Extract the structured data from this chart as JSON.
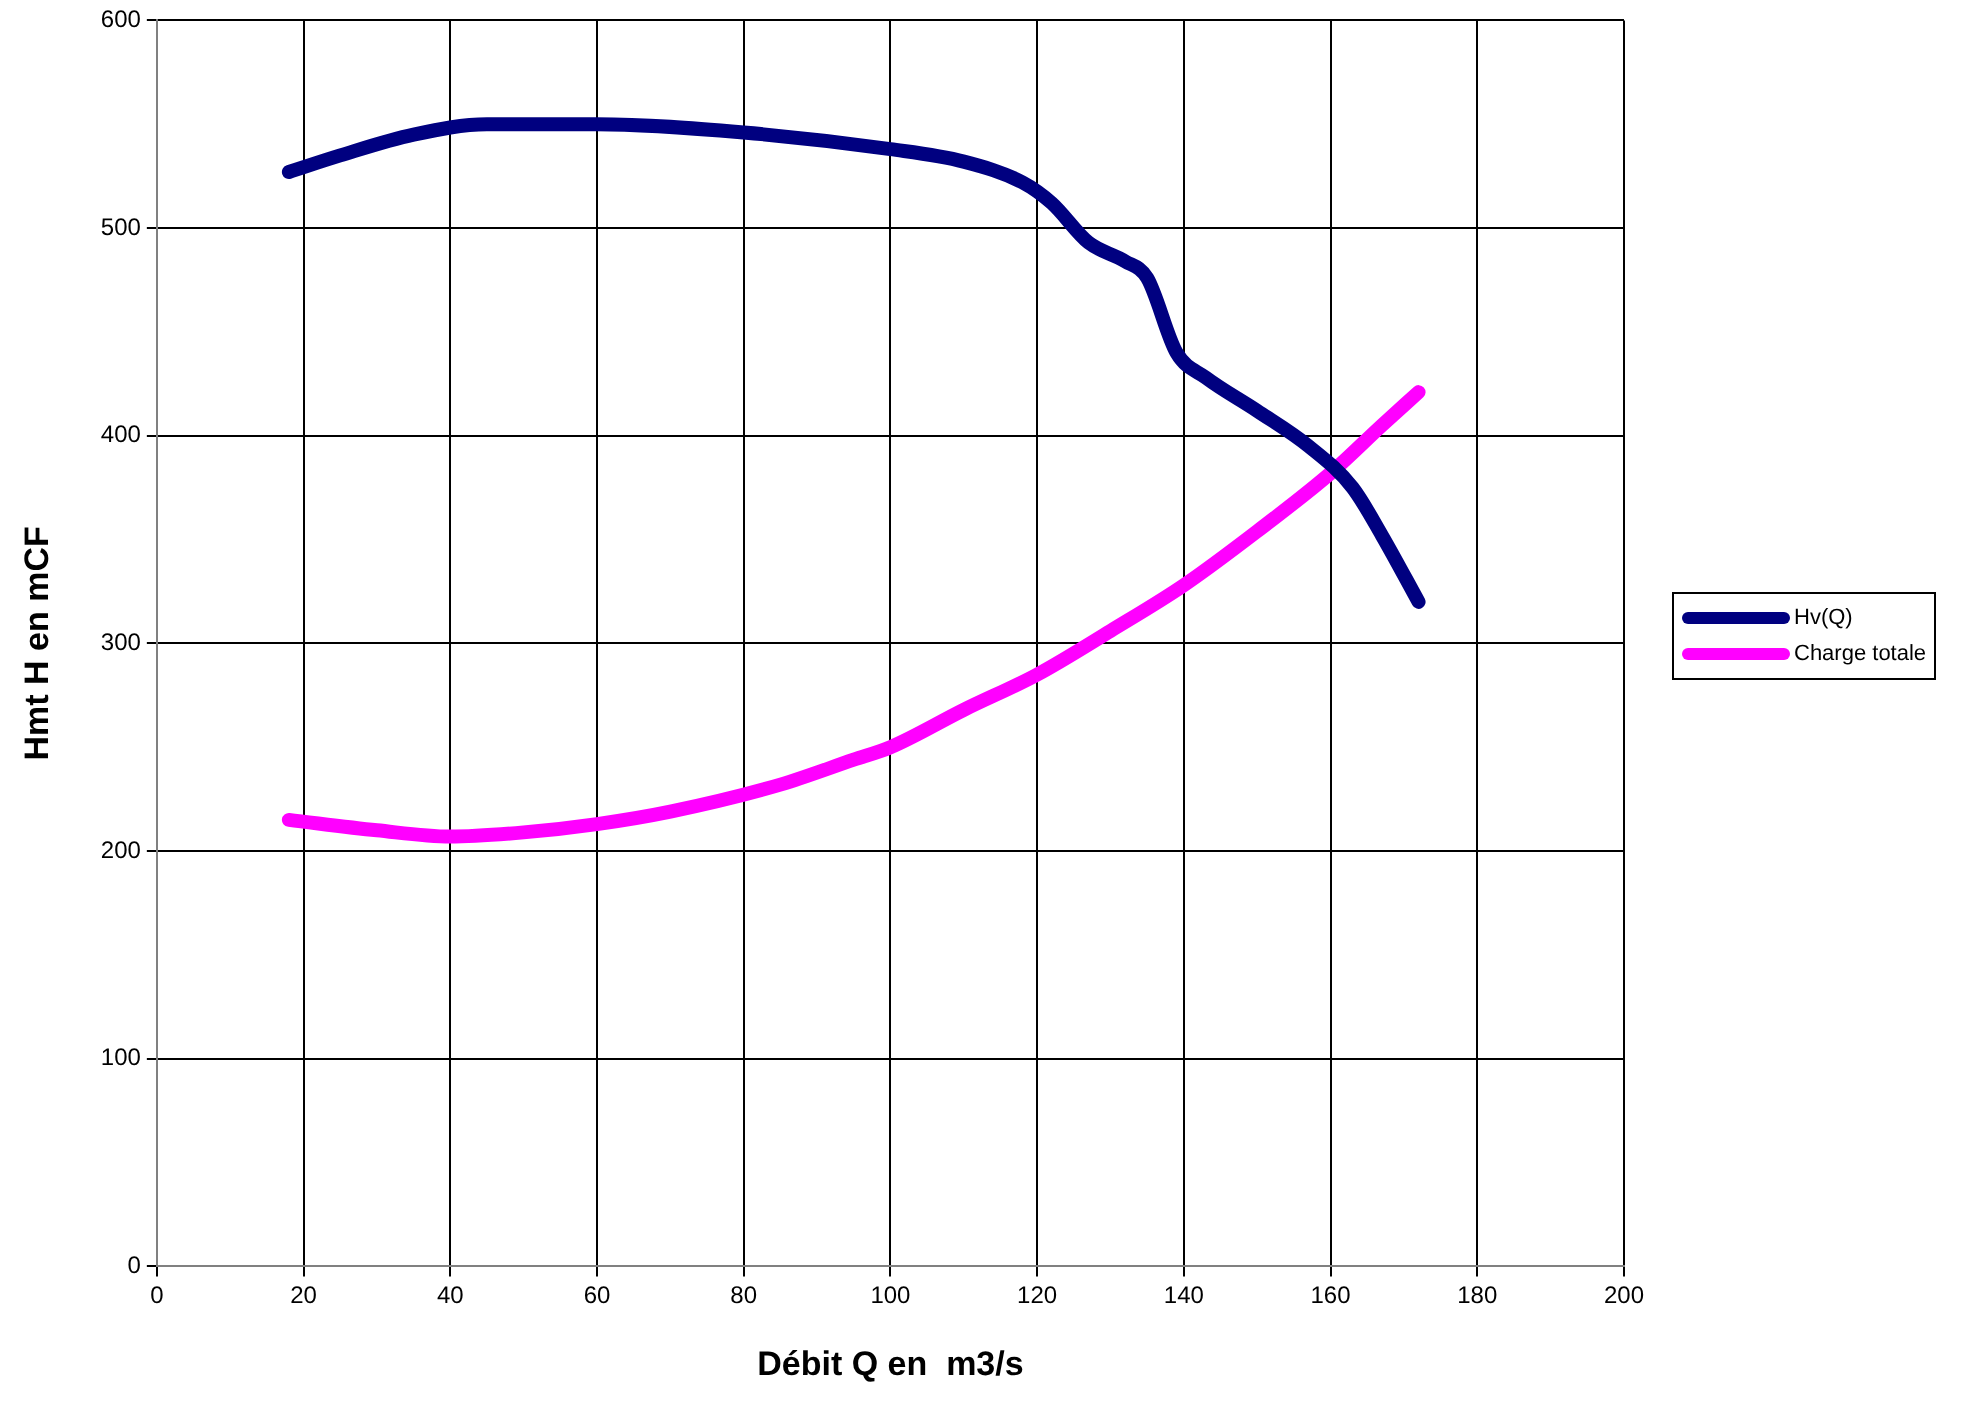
{
  "chart_data": {
    "type": "line",
    "xlabel": "Débit Q en  m3/s",
    "ylabel": "Hmt H en mCF",
    "xlim": [
      0,
      200
    ],
    "xticks": [
      0,
      20,
      40,
      60,
      80,
      100,
      120,
      140,
      160,
      180,
      200
    ],
    "ylim": [
      0,
      600
    ],
    "yticks": [
      0,
      100,
      200,
      300,
      400,
      500,
      600
    ],
    "grid": true,
    "legend": "right",
    "marker": "none",
    "line_style": "solid",
    "series": [
      {
        "name": "Hv(Q)",
        "color": "#000080",
        "x": [
          18,
          25,
          35,
          45,
          60,
          80,
          100,
          110,
          118,
          122,
          127,
          132,
          135,
          139,
          143,
          150,
          157,
          163,
          167,
          172
        ],
        "values": [
          527,
          535,
          545,
          550,
          550,
          546,
          538,
          532,
          522,
          512,
          493,
          484,
          476,
          440,
          428,
          412,
          395,
          375,
          352,
          320
        ]
      },
      {
        "name": "Charge totale",
        "color": "#ff00ff",
        "x": [
          18,
          30,
          40,
          50,
          60,
          70,
          85,
          95,
          100,
          110,
          120,
          130,
          140,
          150,
          160,
          167,
          172
        ],
        "values": [
          215,
          210,
          207,
          209,
          213,
          219,
          232,
          244,
          250,
          268,
          285,
          306,
          328,
          354,
          382,
          405,
          421
        ]
      }
    ]
  }
}
